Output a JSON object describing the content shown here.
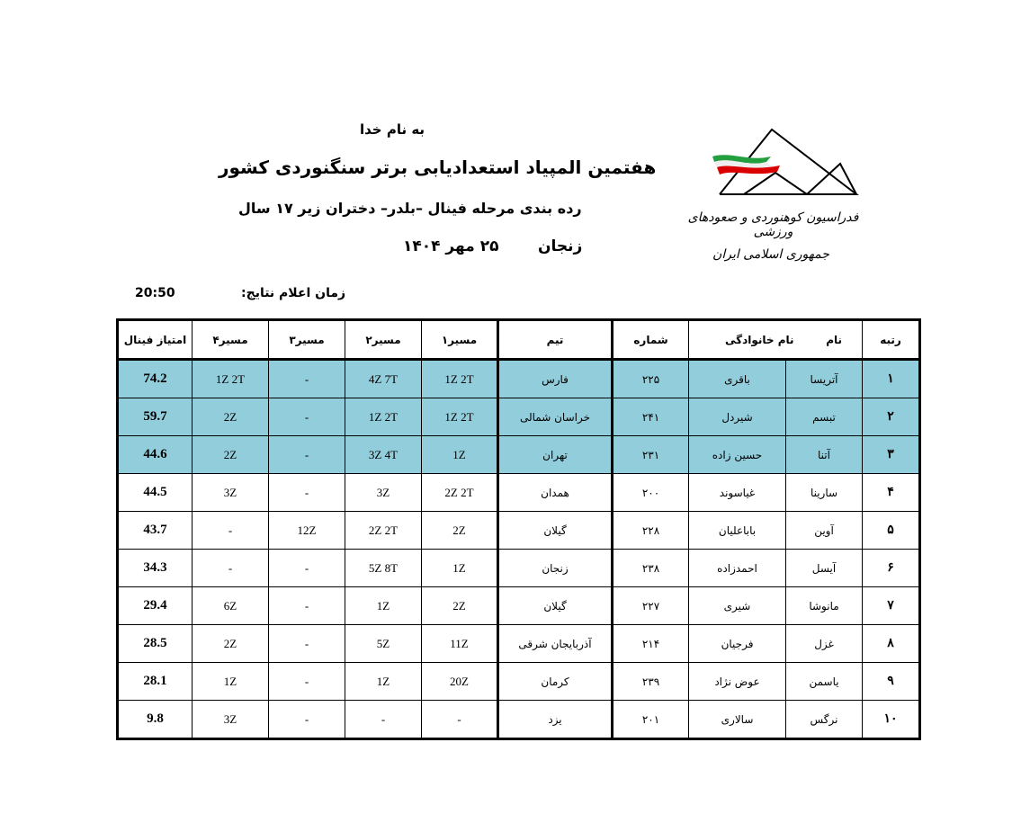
{
  "header": {
    "bismillah": "به نام خدا",
    "title": "هفتمین المپیاد استعدادیابی برتر سنگنوردی کشور",
    "subtitle": "رده بندی مرحله فینال –بلدر– دختران زیر ۱۷ سال",
    "city": "زنجان",
    "date": "۲۵ مهر ۱۴۰۴",
    "results_time_label": "زمان اعلام نتایج:",
    "results_time_value": "20:50"
  },
  "logo": {
    "line1": "فدراسیون کوهنوردی و صعودهای ورزشی",
    "line2": "جمهوری اسلامی ایران",
    "flag_colors": [
      "#239f40",
      "#ffffff",
      "#da0000"
    ]
  },
  "table": {
    "highlight_color": "#92cddc",
    "columns": {
      "rank": "رتبه",
      "first_name": "نام",
      "last_name": "نام خانوادگی",
      "number": "شماره",
      "team": "تیم",
      "route1": "مسیر۱",
      "route2": "مسیر۲",
      "route3": "مسیر۳",
      "route4": "مسیر۴",
      "final": "امتیاز فینال"
    },
    "rows": [
      {
        "rank": "۱",
        "first_name": "آتریسا",
        "last_name": "باقری",
        "number": "۲۲۵",
        "team": "فارس",
        "route1": "1Z 2T",
        "route2": "4Z 7T",
        "route3": "-",
        "route4": "1Z 2T",
        "final": "74.2",
        "highlighted": true
      },
      {
        "rank": "۲",
        "first_name": "تبسم",
        "last_name": "شیردل",
        "number": "۲۴۱",
        "team": "خراسان شمالی",
        "route1": "1Z 2T",
        "route2": "1Z 2T",
        "route3": "-",
        "route4": "2Z",
        "final": "59.7",
        "highlighted": true
      },
      {
        "rank": "۳",
        "first_name": "آتنا",
        "last_name": "حسین زاده",
        "number": "۲۳۱",
        "team": "تهران",
        "route1": "1Z",
        "route2": "3Z 4T",
        "route3": "-",
        "route4": "2Z",
        "final": "44.6",
        "highlighted": true
      },
      {
        "rank": "۴",
        "first_name": "سارینا",
        "last_name": "غیاسوند",
        "number": "۲۰۰",
        "team": "همدان",
        "route1": "2Z 2T",
        "route2": "3Z",
        "route3": "-",
        "route4": "3Z",
        "final": "44.5",
        "highlighted": false
      },
      {
        "rank": "۵",
        "first_name": "آوین",
        "last_name": "باباعلیان",
        "number": "۲۲۸",
        "team": "گیلان",
        "route1": "2Z",
        "route2": "2Z 2T",
        "route3": "12Z",
        "route4": "-",
        "final": "43.7",
        "highlighted": false
      },
      {
        "rank": "۶",
        "first_name": "آیسل",
        "last_name": "احمدزاده",
        "number": "۲۳۸",
        "team": "زنجان",
        "route1": "1Z",
        "route2": "5Z 8T",
        "route3": "-",
        "route4": "-",
        "final": "34.3",
        "highlighted": false
      },
      {
        "rank": "۷",
        "first_name": "مانوشا",
        "last_name": "شیری",
        "number": "۲۲۷",
        "team": "گیلان",
        "route1": "2Z",
        "route2": "1Z",
        "route3": "-",
        "route4": "6Z",
        "final": "29.4",
        "highlighted": false
      },
      {
        "rank": "۸",
        "first_name": "غزل",
        "last_name": "فرجیان",
        "number": "۲۱۴",
        "team": "آذربایجان شرقی",
        "route1": "11Z",
        "route2": "5Z",
        "route3": "-",
        "route4": "2Z",
        "final": "28.5",
        "highlighted": false
      },
      {
        "rank": "۹",
        "first_name": "یاسمن",
        "last_name": "عوض نژاد",
        "number": "۲۳۹",
        "team": "کرمان",
        "route1": "20Z",
        "route2": "1Z",
        "route3": "-",
        "route4": "1Z",
        "final": "28.1",
        "highlighted": false
      },
      {
        "rank": "۱۰",
        "first_name": "نرگس",
        "last_name": "سالاری",
        "number": "۲۰۱",
        "team": "یزد",
        "route1": "-",
        "route2": "-",
        "route3": "-",
        "route4": "3Z",
        "final": "9.8",
        "highlighted": false
      }
    ]
  }
}
